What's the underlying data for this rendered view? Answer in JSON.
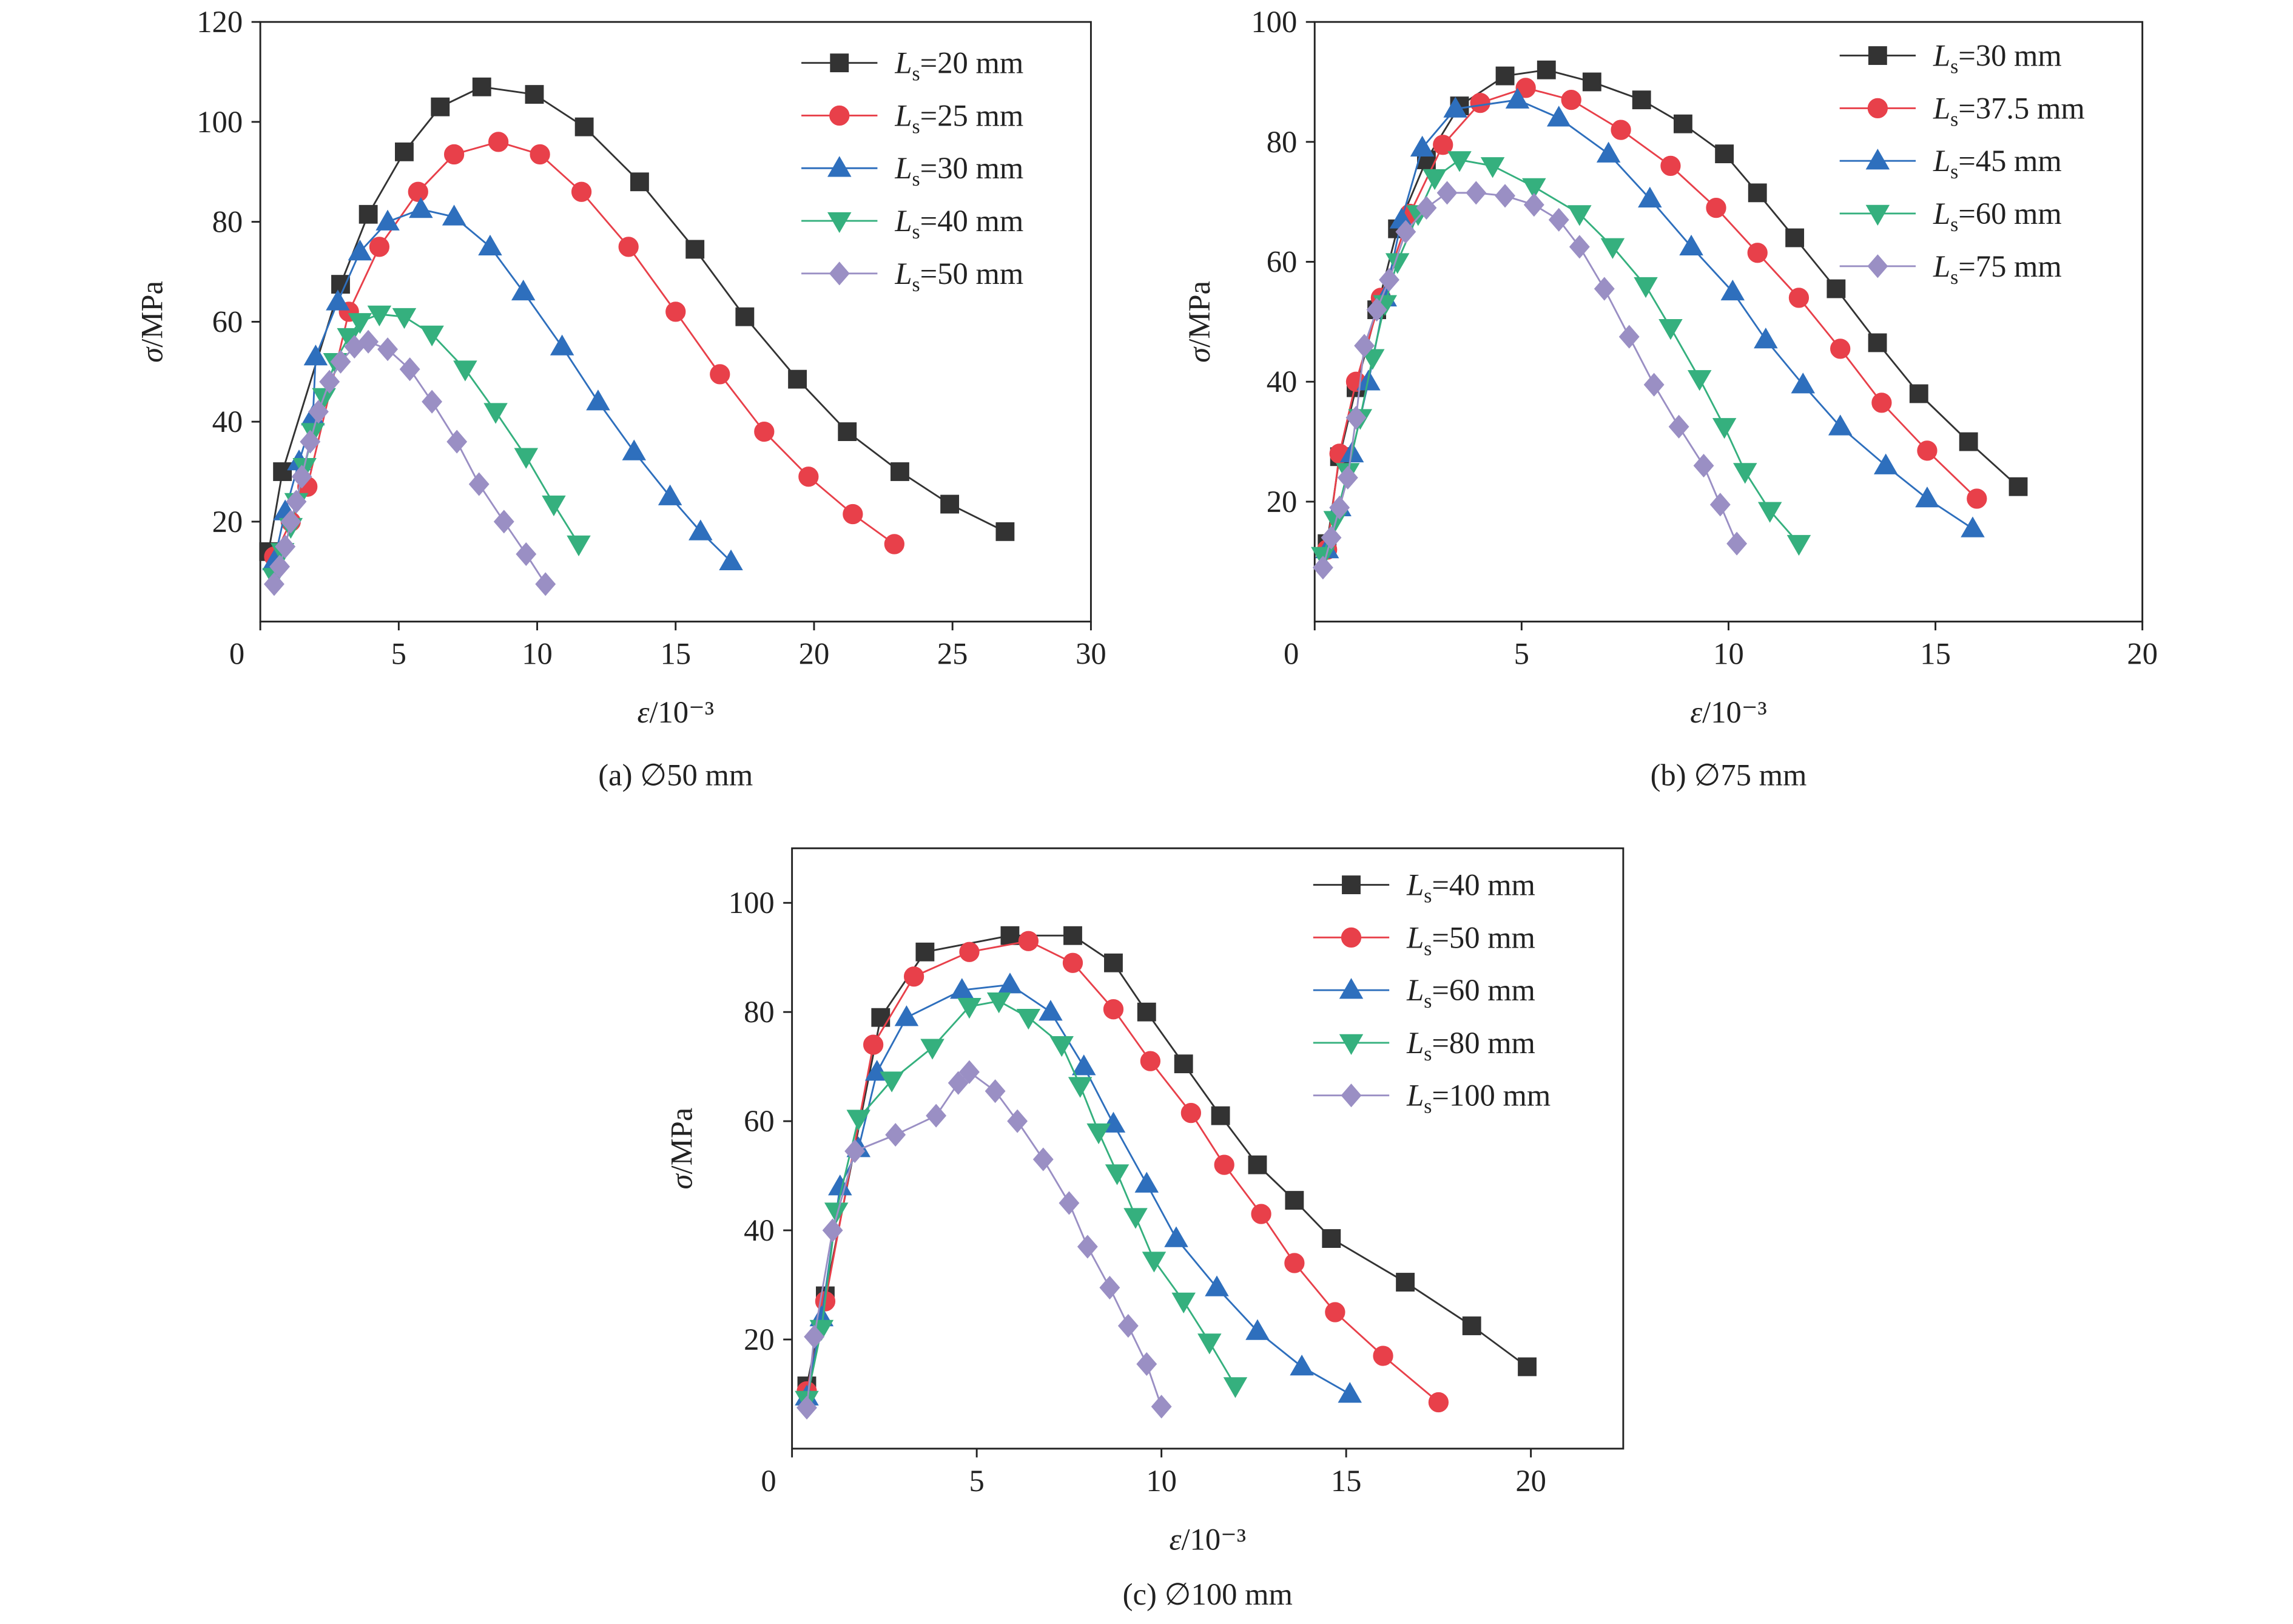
{
  "chart_data": [
    {
      "type": "line",
      "caption": "(a) ∅50 mm",
      "xlabel": "ε/10⁻³",
      "ylabel": "σ/MPa",
      "xlim": [
        0,
        30
      ],
      "ylim": [
        0,
        120
      ],
      "xticks": [
        0,
        5,
        10,
        15,
        20,
        25,
        30
      ],
      "yticks": [
        20,
        40,
        60,
        80,
        100,
        120
      ],
      "legend": "upper right",
      "series": [
        {
          "name": "Ls=20 mm",
          "color": "#333333",
          "marker": "square",
          "x": [
            0.3,
            0.8,
            2.9,
            3.9,
            5.2,
            6.5,
            8.0,
            9.9,
            11.7,
            13.7,
            15.7,
            17.5,
            19.4,
            21.2,
            23.1,
            24.9,
            26.9
          ],
          "values": [
            14,
            30,
            67.5,
            81.5,
            94,
            103,
            107,
            105.5,
            99,
            88,
            74.5,
            61,
            48.5,
            38,
            30,
            23.5,
            18
          ]
        },
        {
          "name": "Ls=25 mm",
          "color": "#e8404a",
          "marker": "circle",
          "x": [
            0.5,
            1.1,
            1.7,
            3.2,
            4.3,
            5.7,
            7.0,
            8.6,
            10.1,
            11.6,
            13.3,
            15.0,
            16.6,
            18.2,
            19.8,
            21.4,
            22.9
          ],
          "values": [
            13,
            20,
            27,
            62,
            75,
            86,
            93.5,
            96,
            93.5,
            86,
            75,
            62,
            49.5,
            38,
            29,
            21.5,
            15.5
          ]
        },
        {
          "name": "Ls=30 mm",
          "color": "#2e6fbd",
          "marker": "triangle-up",
          "x": [
            0.5,
            0.9,
            1.4,
            1.9,
            2.0,
            2.8,
            3.6,
            4.6,
            5.8,
            7.0,
            8.3,
            9.5,
            10.9,
            12.2,
            13.5,
            14.8,
            15.9,
            17.0
          ],
          "values": [
            12,
            22,
            32,
            41,
            53,
            64,
            74,
            80,
            82.5,
            81,
            75,
            66,
            55,
            44,
            34,
            25,
            18,
            12
          ]
        },
        {
          "name": "Ls=40 mm",
          "color": "#35b07e",
          "marker": "triangle-down",
          "x": [
            0.5,
            0.8,
            1.1,
            1.3,
            1.6,
            1.9,
            2.3,
            2.7,
            3.2,
            3.6,
            4.3,
            5.2,
            6.2,
            7.4,
            8.5,
            9.6,
            10.6,
            11.5
          ],
          "values": [
            9,
            14,
            19,
            24,
            31,
            38,
            45,
            52,
            57,
            60,
            61.5,
            61,
            57.5,
            50.5,
            42,
            33,
            23.5,
            15.5
          ]
        },
        {
          "name": "Ls=50 mm",
          "color": "#9a8fc4",
          "marker": "diamond",
          "x": [
            0.5,
            0.7,
            0.9,
            1.1,
            1.3,
            1.5,
            1.8,
            2.1,
            2.5,
            2.9,
            3.4,
            3.9,
            4.6,
            5.4,
            6.2,
            7.1,
            7.9,
            8.8,
            9.6,
            10.3
          ],
          "values": [
            7.5,
            11,
            15,
            20,
            24,
            29,
            36,
            42,
            48,
            52,
            55,
            56,
            54.5,
            50.5,
            44,
            36,
            27.5,
            20,
            13.5,
            7.5
          ]
        }
      ]
    },
    {
      "type": "line",
      "caption": "(b) ∅75 mm",
      "xlabel": "ε/10⁻³",
      "ylabel": "σ/MPa",
      "xlim": [
        0,
        20
      ],
      "ylim": [
        0,
        100
      ],
      "xticks": [
        0,
        5,
        10,
        15,
        20
      ],
      "yticks": [
        20,
        40,
        60,
        80,
        100
      ],
      "legend": "upper right",
      "series": [
        {
          "name": "Ls=30 mm",
          "color": "#333333",
          "marker": "square",
          "x": [
            0.3,
            0.6,
            1.0,
            1.5,
            2.0,
            2.7,
            3.5,
            4.6,
            5.6,
            6.7,
            7.9,
            8.9,
            9.9,
            10.7,
            11.6,
            12.6,
            13.6,
            14.6,
            15.8,
            17.0
          ],
          "values": [
            13,
            27.5,
            39,
            52,
            65.5,
            77,
            86,
            91,
            92,
            90,
            87,
            83,
            78,
            71.5,
            64,
            55.5,
            46.5,
            38,
            30,
            22.5
          ]
        },
        {
          "name": "Ls=37.5 mm",
          "color": "#e8404a",
          "marker": "circle",
          "x": [
            0.3,
            0.6,
            1.0,
            1.6,
            2.3,
            3.1,
            4.0,
            5.1,
            6.2,
            7.4,
            8.6,
            9.7,
            10.7,
            11.7,
            12.7,
            13.7,
            14.8,
            16.0
          ],
          "values": [
            12,
            28,
            40,
            54,
            68,
            79.5,
            86.5,
            89,
            87,
            82,
            76,
            69,
            61.5,
            54,
            45.5,
            36.5,
            28.5,
            20.5
          ]
        },
        {
          "name": "Ls=45 mm",
          "color": "#2e6fbd",
          "marker": "triangle-up",
          "x": [
            0.3,
            0.6,
            0.9,
            1.3,
            1.7,
            2.1,
            2.6,
            3.4,
            4.9,
            5.9,
            7.1,
            8.1,
            9.1,
            10.1,
            10.9,
            11.8,
            12.7,
            13.8,
            14.8,
            15.9
          ],
          "values": [
            12,
            19,
            28,
            40,
            54,
            67,
            79,
            85.5,
            87,
            84,
            78,
            70.5,
            62.5,
            55,
            47,
            39.5,
            32.5,
            26,
            20.5,
            15.5
          ]
        },
        {
          "name": "Ls=60 mm",
          "color": "#35b07e",
          "marker": "triangle-down",
          "x": [
            0.2,
            0.5,
            0.8,
            1.1,
            1.4,
            1.7,
            2.0,
            2.5,
            2.9,
            3.5,
            4.3,
            5.3,
            6.4,
            7.2,
            8.0,
            8.6,
            9.3,
            9.9,
            10.4,
            11.0,
            11.7
          ],
          "values": [
            11,
            17,
            25,
            34,
            44,
            53,
            60,
            68,
            74,
            77,
            76,
            72.5,
            68,
            62.5,
            56,
            49,
            40.5,
            32.5,
            25,
            18.5,
            13
          ]
        },
        {
          "name": "Ls=75 mm",
          "color": "#9a8fc4",
          "marker": "diamond",
          "x": [
            0.2,
            0.4,
            0.6,
            0.8,
            1.0,
            1.2,
            1.5,
            1.8,
            2.2,
            2.7,
            3.2,
            3.9,
            4.6,
            5.3,
            5.9,
            6.4,
            7.0,
            7.6,
            8.2,
            8.8,
            9.4,
            9.8,
            10.2
          ],
          "values": [
            9,
            14,
            19,
            24,
            34,
            46,
            52,
            57,
            65,
            69,
            71.5,
            71.5,
            71,
            69.5,
            67,
            62.5,
            55.5,
            47.5,
            39.5,
            32.5,
            26,
            19.5,
            13
          ]
        }
      ]
    },
    {
      "type": "line",
      "caption": "(c) ∅100 mm",
      "xlabel": "ε/10⁻³",
      "ylabel": "σ/MPa",
      "xlim": [
        0,
        22.5
      ],
      "ylim": [
        0,
        110
      ],
      "xticks": [
        0,
        5,
        10,
        15,
        20
      ],
      "yticks": [
        20,
        40,
        60,
        80,
        100
      ],
      "legend": "upper right",
      "series": [
        {
          "name": "Ls=40 mm",
          "color": "#333333",
          "marker": "square",
          "x": [
            0.4,
            0.9,
            2.4,
            3.6,
            5.9,
            7.6,
            8.7,
            9.6,
            10.6,
            11.6,
            12.6,
            13.6,
            14.6,
            16.6,
            18.4,
            19.9
          ],
          "values": [
            11.5,
            28,
            79,
            91,
            94,
            94,
            89,
            80,
            70.5,
            61,
            52,
            45.5,
            38.5,
            30.5,
            22.5,
            15
          ]
        },
        {
          "name": "Ls=50 mm",
          "color": "#e8404a",
          "marker": "circle",
          "x": [
            0.4,
            0.9,
            2.2,
            3.3,
            4.8,
            6.4,
            7.6,
            8.7,
            9.7,
            10.8,
            11.7,
            12.7,
            13.6,
            14.7,
            16.0,
            17.5
          ],
          "values": [
            10.5,
            27,
            74,
            86.5,
            91,
            93,
            89,
            80.5,
            71,
            61.5,
            52,
            43,
            34,
            25,
            17,
            8.5
          ]
        },
        {
          "name": "Ls=60 mm",
          "color": "#2e6fbd",
          "marker": "triangle-up",
          "x": [
            0.4,
            0.8,
            1.3,
            1.8,
            2.3,
            3.1,
            4.6,
            5.9,
            7.0,
            7.9,
            8.7,
            9.6,
            10.4,
            11.5,
            12.6,
            13.8,
            15.1
          ],
          "values": [
            9.5,
            24,
            48,
            55,
            69,
            79,
            84,
            85,
            80,
            70,
            59.5,
            48.5,
            38.5,
            29.5,
            21.5,
            15,
            10
          ]
        },
        {
          "name": "Ls=80 mm",
          "color": "#35b07e",
          "marker": "triangle-down",
          "x": [
            0.4,
            0.8,
            1.2,
            1.8,
            2.7,
            3.8,
            4.8,
            5.6,
            6.4,
            7.3,
            7.8,
            8.3,
            8.8,
            9.3,
            9.8,
            10.6,
            11.3,
            12.0
          ],
          "values": [
            9,
            22,
            43.5,
            60.5,
            67.5,
            73.5,
            81,
            82,
            79,
            74,
            66.5,
            58,
            50.5,
            42.5,
            34.5,
            27,
            19.5,
            11.5
          ]
        },
        {
          "name": "Ls=100 mm",
          "color": "#9a8fc4",
          "marker": "diamond",
          "x": [
            0.4,
            0.6,
            1.1,
            1.7,
            2.8,
            3.9,
            4.5,
            4.8,
            5.5,
            6.1,
            6.8,
            7.5,
            8.0,
            8.6,
            9.1,
            9.6,
            10.0
          ],
          "values": [
            7.5,
            20.5,
            40,
            54.5,
            57.5,
            61,
            67,
            69,
            65.5,
            60,
            53,
            45,
            37,
            29.5,
            22.5,
            15.5,
            7.7
          ]
        }
      ]
    }
  ]
}
